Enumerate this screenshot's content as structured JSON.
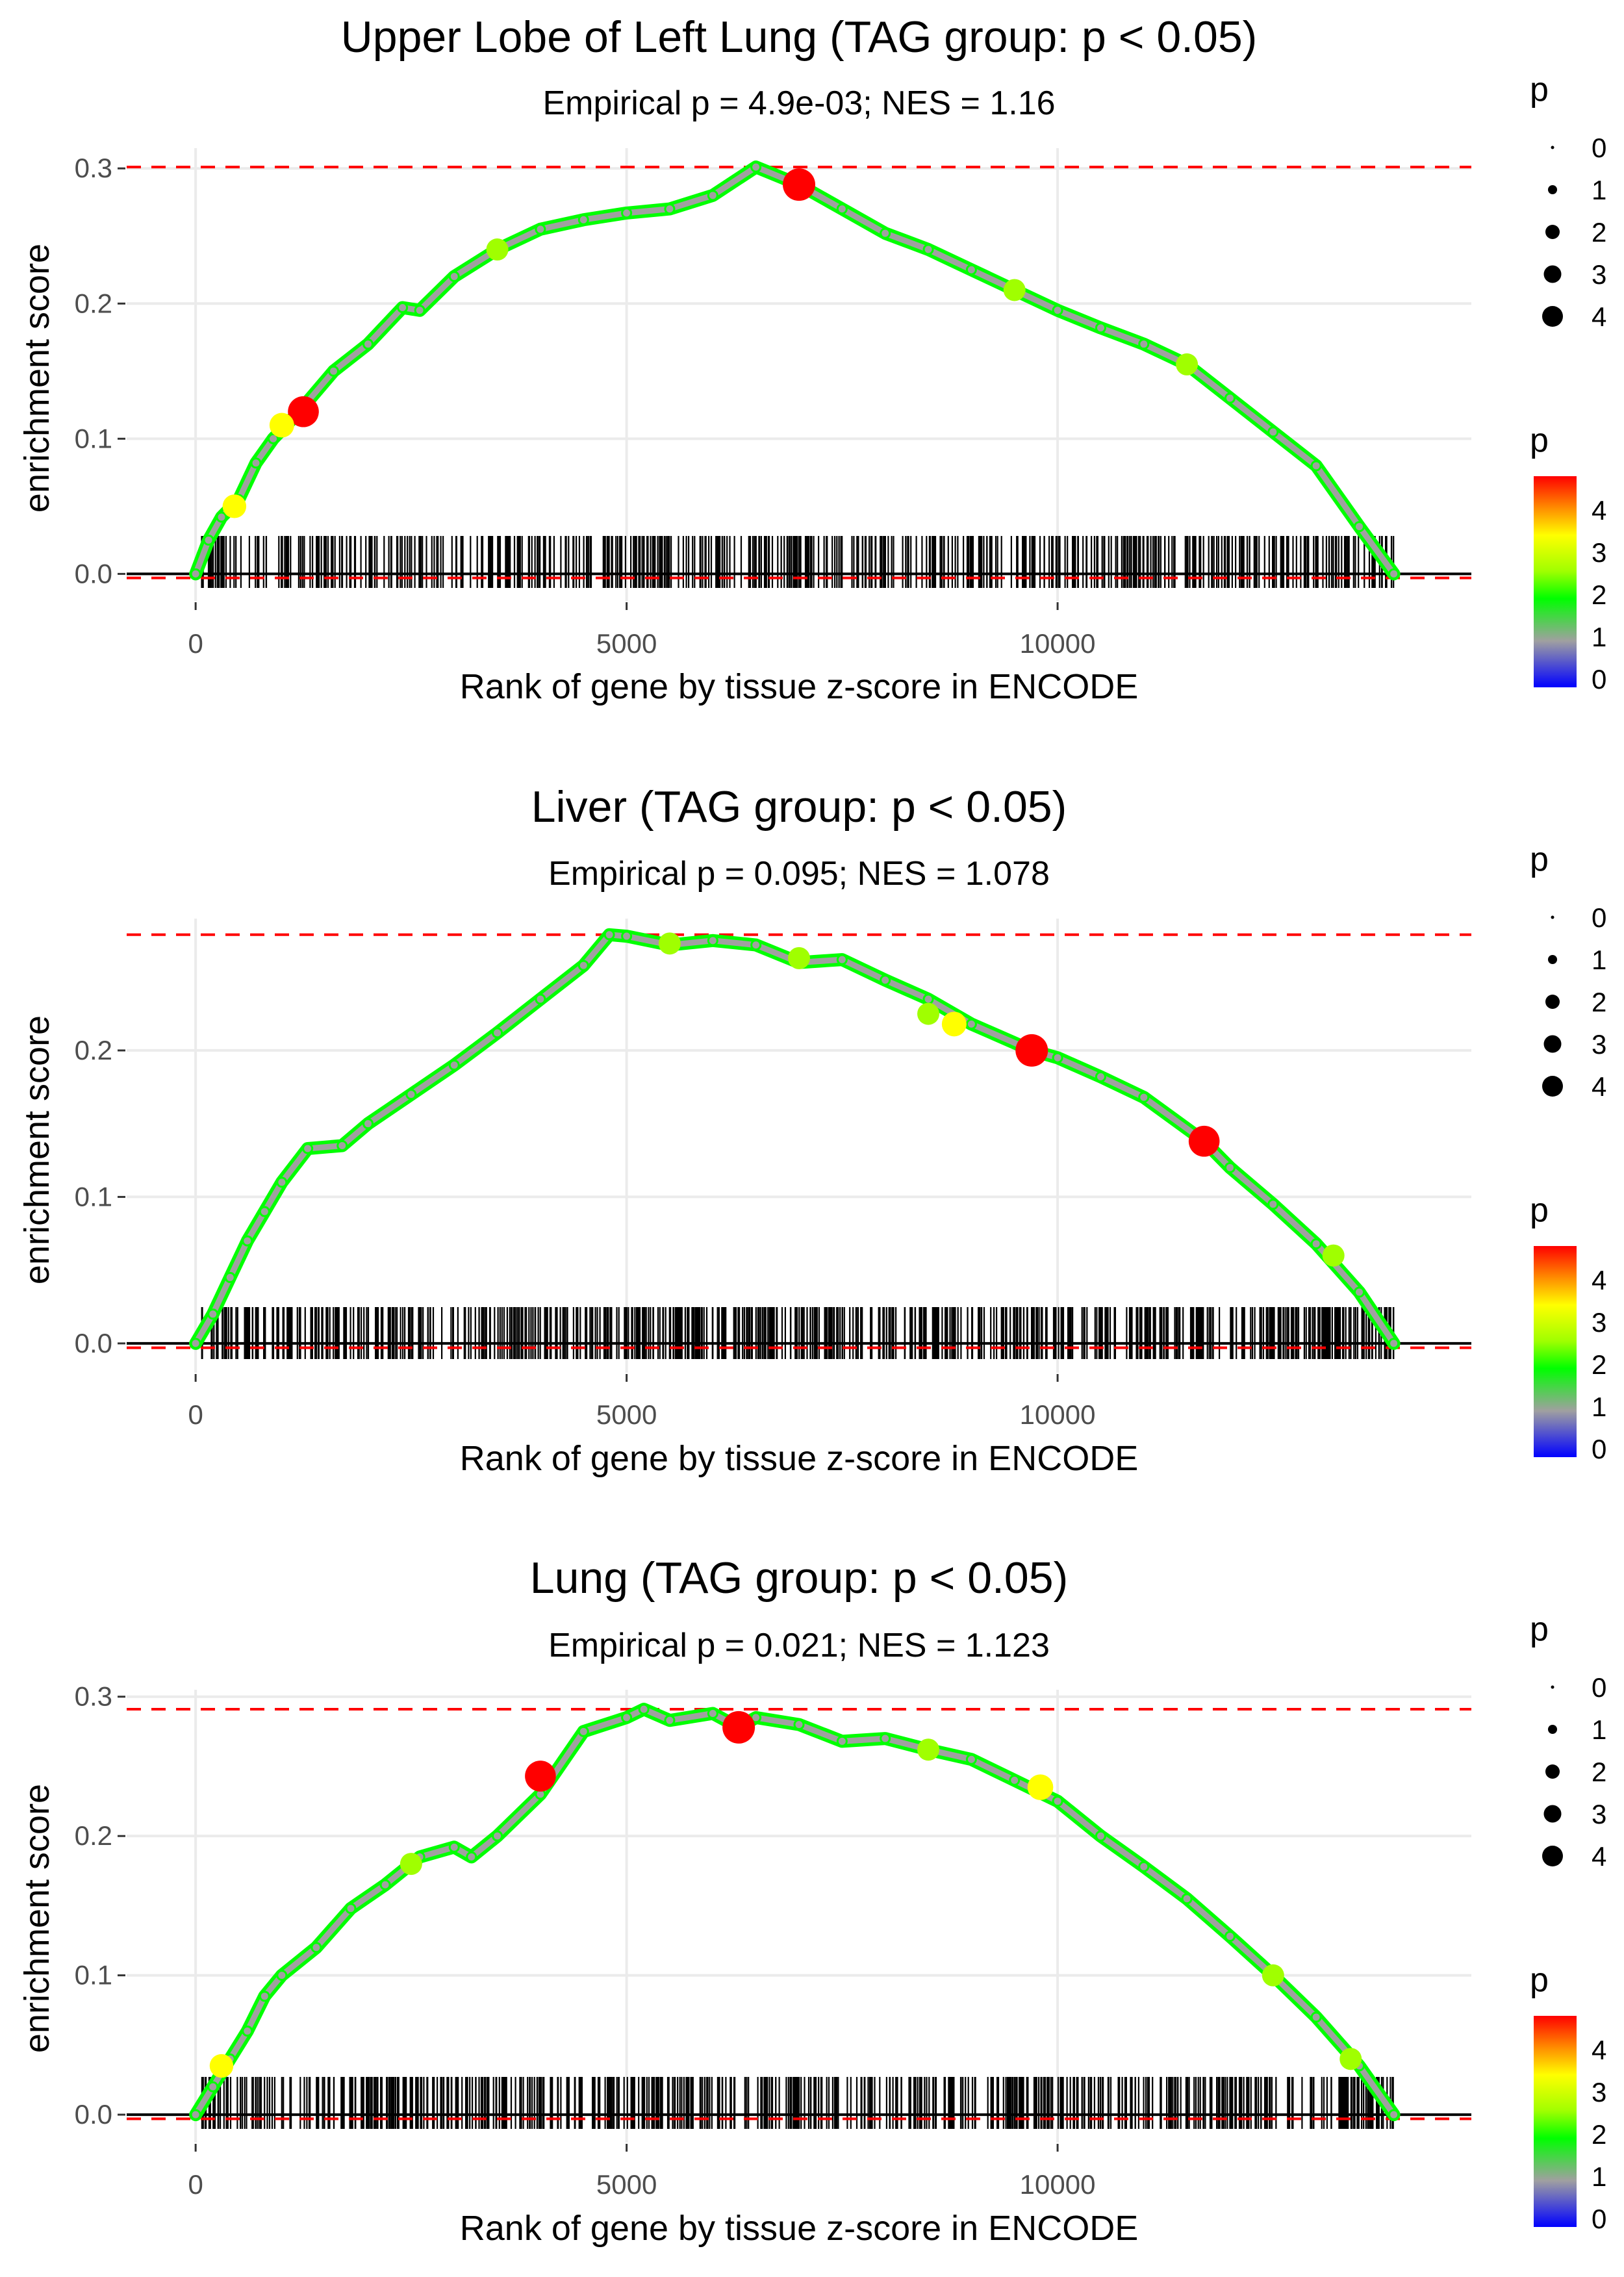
{
  "colors": {
    "ref_line": "#ff0000",
    "grid": "#ebebeb",
    "rug": "#000000",
    "axis_text": "#4d4d4d",
    "text": "#000000",
    "scale_red": "#ff0000",
    "scale_orange": "#ff8c00",
    "scale_yellow": "#ffff00",
    "scale_chartreuse": "#a0ff00",
    "scale_green": "#00ff00",
    "scale_grey": "#a0a0a0",
    "scale_blue": "#0000ff"
  },
  "chart_data": [
    {
      "type": "line",
      "title": "Upper Lobe of Left Lung (TAG group: p < 0.05)",
      "subtitle": "Empirical p = 4.9e-03; NES = 1.16",
      "xlabel": "Rank of gene by tissue z-score in ENCODE",
      "ylabel": "enrichment score",
      "xlim": [
        -800,
        14800
      ],
      "ylim": [
        -0.02,
        0.315
      ],
      "x_ticks": [
        0,
        5000,
        10000
      ],
      "x_tick_labels": [
        "0",
        "5000",
        "10000"
      ],
      "y_ticks": [
        0.0,
        0.1,
        0.2,
        0.3
      ],
      "y_tick_labels": [
        "0.0",
        "0.1",
        "0.2",
        "0.3"
      ],
      "max_es": 0.301,
      "min_es": -0.003,
      "curve": {
        "x": [
          0,
          150,
          300,
          500,
          700,
          900,
          1200,
          1600,
          2000,
          2400,
          2600,
          3000,
          3500,
          4000,
          4500,
          5000,
          5500,
          6000,
          6500,
          7000,
          7500,
          8000,
          8500,
          9000,
          9500,
          10000,
          10500,
          11000,
          11500,
          12000,
          12500,
          13000,
          13500,
          13900
        ],
        "y": [
          0.0,
          0.025,
          0.042,
          0.055,
          0.082,
          0.1,
          0.12,
          0.15,
          0.17,
          0.197,
          0.195,
          0.22,
          0.24,
          0.255,
          0.262,
          0.267,
          0.27,
          0.28,
          0.301,
          0.288,
          0.27,
          0.252,
          0.24,
          0.225,
          0.21,
          0.195,
          0.182,
          0.17,
          0.155,
          0.13,
          0.105,
          0.08,
          0.035,
          0.0
        ]
      },
      "highlights": [
        {
          "x": 1250,
          "y": 0.12,
          "p": 4.2
        },
        {
          "x": 7000,
          "y": 0.288,
          "p": 4.5
        },
        {
          "x": 1000,
          "y": 0.11,
          "p": 3.0
        },
        {
          "x": 450,
          "y": 0.05,
          "p": 2.8
        },
        {
          "x": 3500,
          "y": 0.24,
          "p": 2.5
        },
        {
          "x": 9500,
          "y": 0.21,
          "p": 2.5
        },
        {
          "x": 11500,
          "y": 0.155,
          "p": 2.5
        }
      ],
      "rug_seed": 11,
      "rug_count": 560,
      "size_legend": {
        "title": "p",
        "labels": [
          "0",
          "1",
          "2",
          "3",
          "4"
        ]
      },
      "color_legend": {
        "title": "p",
        "labels": [
          "4",
          "3",
          "2",
          "1",
          "0"
        ]
      }
    },
    {
      "type": "line",
      "title": "Liver (TAG group: p < 0.05)",
      "subtitle": "Empirical p = 0.095; NES = 1.078",
      "xlabel": "Rank of gene by tissue z-score in ENCODE",
      "ylabel": "enrichment score",
      "xlim": [
        -800,
        14800
      ],
      "ylim": [
        -0.02,
        0.29
      ],
      "x_ticks": [
        0,
        5000,
        10000
      ],
      "x_tick_labels": [
        "0",
        "5000",
        "10000"
      ],
      "y_ticks": [
        0.0,
        0.1,
        0.2
      ],
      "y_tick_labels": [
        "0.0",
        "0.1",
        "0.2"
      ],
      "max_es": 0.279,
      "min_es": -0.003,
      "curve": {
        "x": [
          0,
          200,
          400,
          600,
          800,
          1000,
          1300,
          1700,
          2000,
          2500,
          3000,
          3500,
          4000,
          4500,
          4800,
          5000,
          5500,
          6000,
          6500,
          7000,
          7500,
          8000,
          8500,
          9000,
          9700,
          10000,
          10500,
          11000,
          11700,
          12000,
          12500,
          13000,
          13500,
          13900
        ],
        "y": [
          0.0,
          0.02,
          0.045,
          0.07,
          0.09,
          0.11,
          0.133,
          0.135,
          0.15,
          0.17,
          0.19,
          0.212,
          0.235,
          0.258,
          0.279,
          0.278,
          0.272,
          0.275,
          0.272,
          0.26,
          0.262,
          0.248,
          0.235,
          0.218,
          0.2,
          0.195,
          0.182,
          0.168,
          0.138,
          0.12,
          0.095,
          0.068,
          0.035,
          0.0
        ]
      },
      "highlights": [
        {
          "x": 9700,
          "y": 0.2,
          "p": 4.5
        },
        {
          "x": 11700,
          "y": 0.138,
          "p": 4.2
        },
        {
          "x": 8800,
          "y": 0.218,
          "p": 3.0
        },
        {
          "x": 8500,
          "y": 0.225,
          "p": 2.5
        },
        {
          "x": 7000,
          "y": 0.263,
          "p": 2.5
        },
        {
          "x": 5500,
          "y": 0.273,
          "p": 2.5
        },
        {
          "x": 13200,
          "y": 0.06,
          "p": 2.5
        }
      ],
      "rug_seed": 23,
      "rug_count": 680,
      "size_legend": {
        "title": "p",
        "labels": [
          "0",
          "1",
          "2",
          "3",
          "4"
        ]
      },
      "color_legend": {
        "title": "p",
        "labels": [
          "4",
          "3",
          "2",
          "1",
          "0"
        ]
      }
    },
    {
      "type": "line",
      "title": "Lung (TAG group: p < 0.05)",
      "subtitle": "Empirical p = 0.021; NES = 1.123",
      "xlabel": "Rank of gene by tissue z-score in ENCODE",
      "ylabel": "enrichment score",
      "xlim": [
        -800,
        14800
      ],
      "ylim": [
        -0.02,
        0.305
      ],
      "x_ticks": [
        0,
        5000,
        10000
      ],
      "x_tick_labels": [
        "0",
        "5000",
        "10000"
      ],
      "y_ticks": [
        0.0,
        0.1,
        0.2,
        0.3
      ],
      "y_tick_labels": [
        "0.0",
        "0.1",
        "0.2",
        "0.3"
      ],
      "max_es": 0.291,
      "min_es": -0.003,
      "curve": {
        "x": [
          0,
          200,
          400,
          600,
          800,
          1000,
          1400,
          1800,
          2200,
          2600,
          3000,
          3200,
          3500,
          4000,
          4500,
          5000,
          5200,
          5500,
          6000,
          6300,
          6500,
          7000,
          7500,
          8000,
          8500,
          9000,
          9500,
          10000,
          10500,
          11000,
          11500,
          12000,
          12500,
          13000,
          13500,
          13900
        ],
        "y": [
          0.0,
          0.02,
          0.04,
          0.06,
          0.085,
          0.1,
          0.12,
          0.148,
          0.165,
          0.185,
          0.192,
          0.185,
          0.2,
          0.23,
          0.275,
          0.285,
          0.291,
          0.283,
          0.288,
          0.278,
          0.285,
          0.28,
          0.268,
          0.27,
          0.262,
          0.255,
          0.24,
          0.225,
          0.2,
          0.178,
          0.155,
          0.128,
          0.1,
          0.07,
          0.035,
          0.0
        ]
      },
      "highlights": [
        {
          "x": 4000,
          "y": 0.243,
          "p": 4.2
        },
        {
          "x": 6300,
          "y": 0.278,
          "p": 4.5
        },
        {
          "x": 9800,
          "y": 0.235,
          "p": 3.2
        },
        {
          "x": 8500,
          "y": 0.262,
          "p": 2.5
        },
        {
          "x": 2500,
          "y": 0.18,
          "p": 2.5
        },
        {
          "x": 12500,
          "y": 0.1,
          "p": 2.5
        },
        {
          "x": 13400,
          "y": 0.04,
          "p": 2.5
        },
        {
          "x": 300,
          "y": 0.035,
          "p": 2.8
        }
      ],
      "rug_seed": 37,
      "rug_count": 640,
      "size_legend": {
        "title": "p",
        "labels": [
          "0",
          "1",
          "2",
          "3",
          "4"
        ]
      },
      "color_legend": {
        "title": "p",
        "labels": [
          "4",
          "3",
          "2",
          "1",
          "0"
        ]
      }
    }
  ]
}
